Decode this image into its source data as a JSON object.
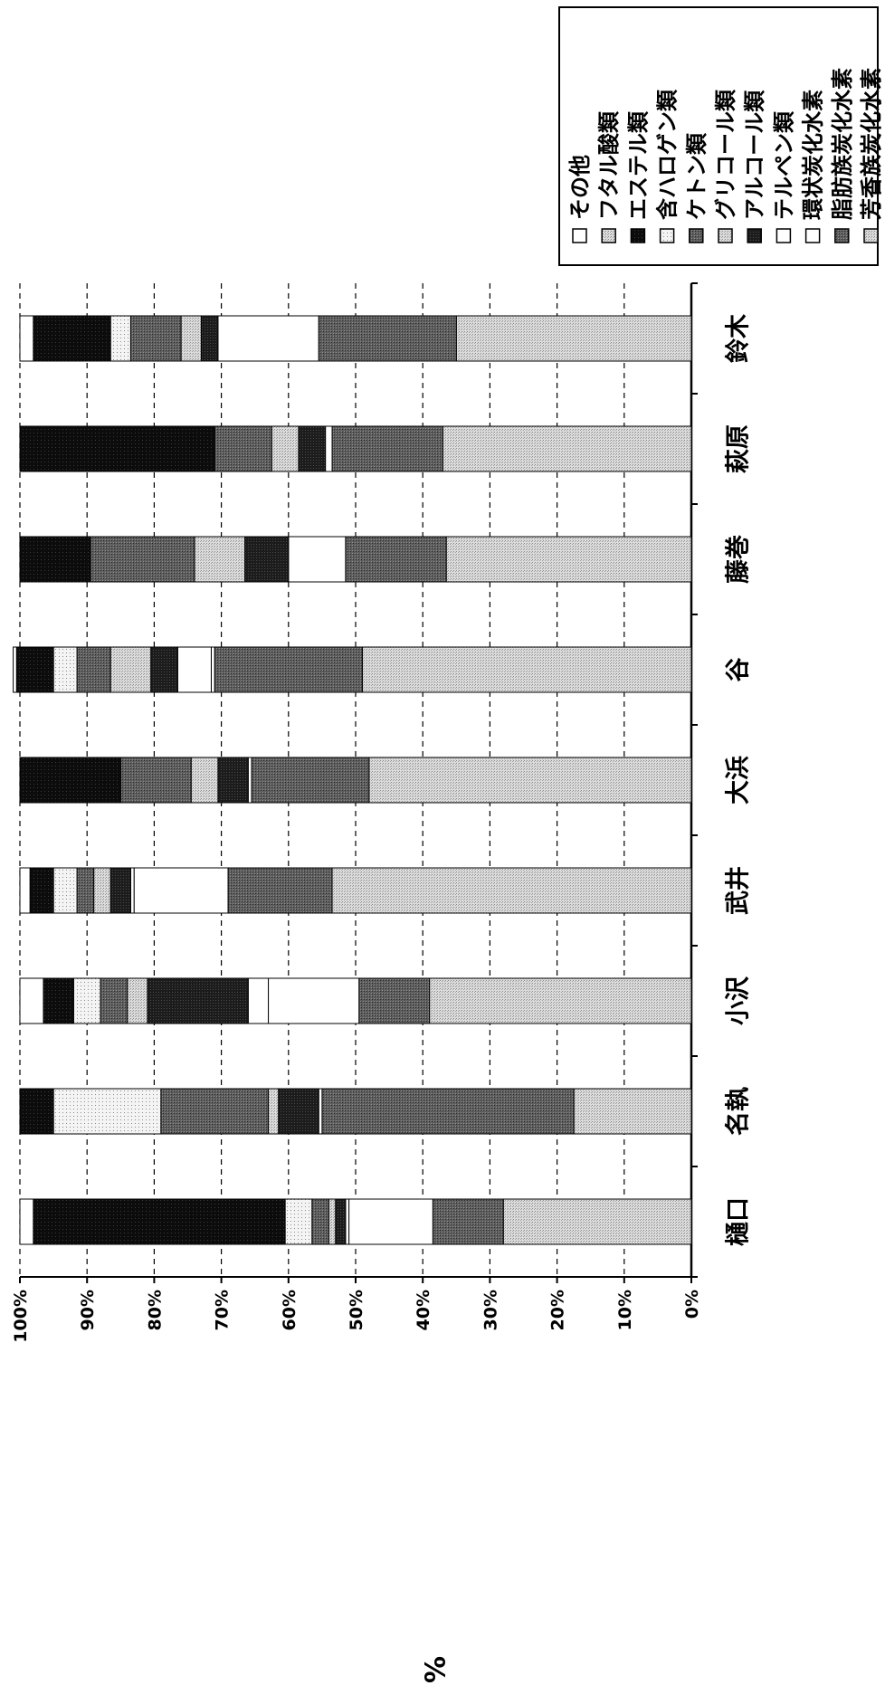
{
  "chart_data": {
    "type": "bar",
    "stacked": true,
    "orientation": "rotated-90",
    "ylabel": "%",
    "ylim": [
      0,
      100
    ],
    "yticks": [
      "0%",
      "10%",
      "20%",
      "30%",
      "40%",
      "50%",
      "60%",
      "70%",
      "80%",
      "90%",
      "100%"
    ],
    "grid": true,
    "legend_placement": "top-right",
    "categories": [
      "樋口",
      "名執",
      "小沢",
      "武井",
      "大浜",
      "谷",
      "藤巻",
      "萩原",
      "鈴木"
    ],
    "series": [
      {
        "name": "芳香族炭化水素",
        "color": "#d6d6d6",
        "values": [
          28,
          17.5,
          39,
          53.5,
          48,
          49,
          36.5,
          37,
          35
        ]
      },
      {
        "name": "脂肪族炭化水素",
        "color": "#555555",
        "values": [
          10.5,
          37.5,
          10.5,
          15.5,
          17.5,
          22,
          15,
          16.5,
          20.5
        ]
      },
      {
        "name": "環状炭化水素",
        "color": "#ffffff",
        "values": [
          12.5,
          0.5,
          13.5,
          14,
          0.5,
          0.5,
          8.5,
          1,
          15
        ]
      },
      {
        "name": "テルペン類",
        "color": "#ffffff",
        "values": [
          0.5,
          0,
          3,
          0.5,
          0,
          5,
          0,
          0,
          0
        ]
      },
      {
        "name": "アルコール類",
        "color": "#3a3a3a",
        "values": [
          1.5,
          6,
          15,
          3,
          4.5,
          4,
          6.5,
          4,
          2.5
        ]
      },
      {
        "name": "グリコール類",
        "color": "#d6d6d6",
        "values": [
          1,
          1.5,
          3,
          2.5,
          4,
          6,
          7.5,
          4,
          3
        ]
      },
      {
        "name": "ケトン類",
        "color": "#555555",
        "values": [
          2.5,
          16,
          4,
          2.5,
          10.5,
          5,
          15.5,
          8.5,
          7.5
        ]
      },
      {
        "name": "含ハロゲン類",
        "color": "#eeeeee",
        "values": [
          4,
          16,
          4,
          3.5,
          0,
          3.5,
          0,
          0,
          3
        ]
      },
      {
        "name": "エステル類",
        "color": "#161616",
        "values": [
          37.5,
          5,
          4.5,
          3.5,
          15,
          5.5,
          10.5,
          29,
          11.5
        ]
      },
      {
        "name": "フタル酸類",
        "color": "#d6d6d6",
        "values": [
          0,
          0,
          0,
          0,
          0,
          0,
          0,
          0,
          0
        ]
      },
      {
        "name": "その他",
        "color": "#ffffff",
        "values": [
          2,
          0,
          3.5,
          1.5,
          0,
          0.5,
          0,
          0,
          2
        ]
      }
    ]
  }
}
